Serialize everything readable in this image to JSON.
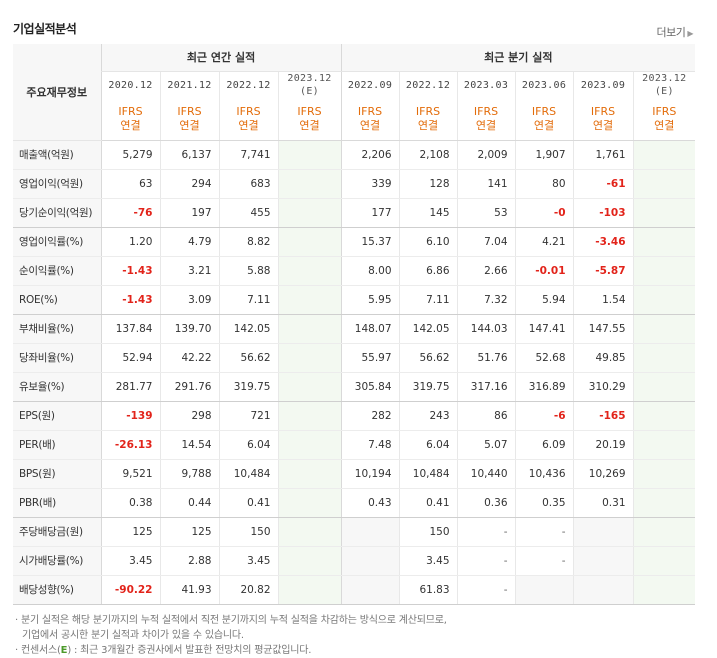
{
  "title": "기업실적분석",
  "more_label": "더보기",
  "header": {
    "label": "주요재무정보",
    "annual_group": "최근 연간 실적",
    "quarter_group": "최근 분기 실적",
    "annual_years": [
      "2020.12",
      "2021.12",
      "2022.12"
    ],
    "annual_est_year": "2023.12",
    "est_mark": "(E)",
    "quarter_years": [
      "2022.09",
      "2022.12",
      "2023.03",
      "2023.06",
      "2023.09"
    ],
    "quarter_est_year": "2023.12",
    "ifrs_line1": "IFRS",
    "ifrs_line2": "연결"
  },
  "rows": [
    {
      "label": "매출액(억원)",
      "annual": [
        "5,279",
        "6,137",
        "7,741"
      ],
      "quarter": [
        "2,206",
        "2,108",
        "2,009",
        "1,907",
        "1,761"
      ]
    },
    {
      "label": "영업이익(억원)",
      "annual": [
        "63",
        "294",
        "683"
      ],
      "quarter": [
        "339",
        "128",
        "141",
        "80",
        "-61"
      ]
    },
    {
      "label": "당기순이익(억원)",
      "annual": [
        "-76",
        "197",
        "455"
      ],
      "quarter": [
        "177",
        "145",
        "53",
        "-0",
        "-103"
      ]
    },
    {
      "label": "영업이익률(%)",
      "annual": [
        "1.20",
        "4.79",
        "8.82"
      ],
      "quarter": [
        "15.37",
        "6.10",
        "7.04",
        "4.21",
        "-3.46"
      ]
    },
    {
      "label": "순이익률(%)",
      "annual": [
        "-1.43",
        "3.21",
        "5.88"
      ],
      "quarter": [
        "8.00",
        "6.86",
        "2.66",
        "-0.01",
        "-5.87"
      ]
    },
    {
      "label": "ROE(%)",
      "annual": [
        "-1.43",
        "3.09",
        "7.11"
      ],
      "quarter": [
        "5.95",
        "7.11",
        "7.32",
        "5.94",
        "1.54"
      ]
    },
    {
      "label": "부채비율(%)",
      "annual": [
        "137.84",
        "139.70",
        "142.05"
      ],
      "quarter": [
        "148.07",
        "142.05",
        "144.03",
        "147.41",
        "147.55"
      ]
    },
    {
      "label": "당좌비율(%)",
      "annual": [
        "52.94",
        "42.22",
        "56.62"
      ],
      "quarter": [
        "55.97",
        "56.62",
        "51.76",
        "52.68",
        "49.85"
      ]
    },
    {
      "label": "유보율(%)",
      "annual": [
        "281.77",
        "291.76",
        "319.75"
      ],
      "quarter": [
        "305.84",
        "319.75",
        "317.16",
        "316.89",
        "310.29"
      ]
    },
    {
      "label": "EPS(원)",
      "annual": [
        "-139",
        "298",
        "721"
      ],
      "quarter": [
        "282",
        "243",
        "86",
        "-6",
        "-165"
      ]
    },
    {
      "label": "PER(배)",
      "annual": [
        "-26.13",
        "14.54",
        "6.04"
      ],
      "quarter": [
        "7.48",
        "6.04",
        "5.07",
        "6.09",
        "20.19"
      ]
    },
    {
      "label": "BPS(원)",
      "annual": [
        "9,521",
        "9,788",
        "10,484"
      ],
      "quarter": [
        "10,194",
        "10,484",
        "10,440",
        "10,436",
        "10,269"
      ]
    },
    {
      "label": "PBR(배)",
      "annual": [
        "0.38",
        "0.44",
        "0.41"
      ],
      "quarter": [
        "0.43",
        "0.41",
        "0.36",
        "0.35",
        "0.31"
      ]
    },
    {
      "label": "주당배당금(원)",
      "annual": [
        "125",
        "125",
        "150"
      ],
      "quarter": [
        "",
        "150",
        "-",
        "-",
        ""
      ]
    },
    {
      "label": "시가배당률(%)",
      "annual": [
        "3.45",
        "2.88",
        "3.45"
      ],
      "quarter": [
        "",
        "3.45",
        "-",
        "-",
        ""
      ]
    },
    {
      "label": "배당성향(%)",
      "annual": [
        "-90.22",
        "41.93",
        "20.82"
      ],
      "quarter": [
        "",
        "61.83",
        "-",
        "",
        ""
      ]
    }
  ],
  "notes": {
    "line1": "· 분기 실적은 해당 분기까지의 누적 실적에서 직전 분기까지의 누적 실적을 차감하는 방식으로 계산되므로,",
    "line2": "기업에서 공시한 분기 실적과 차이가 있을 수 있습니다.",
    "line3_prefix": "· 컨센서스(",
    "line3_mark": "E",
    "line3_suffix": ") : 최근 3개월간 증권사에서 발표한 전망치의 평균값입니다."
  },
  "colors": {
    "negative": "#e2231a",
    "ifrs": "#e36c0a",
    "estimate_bg": "#f3f9f1",
    "label_bg": "#f7f7f7",
    "consensus_mark": "#4c9a2a"
  }
}
